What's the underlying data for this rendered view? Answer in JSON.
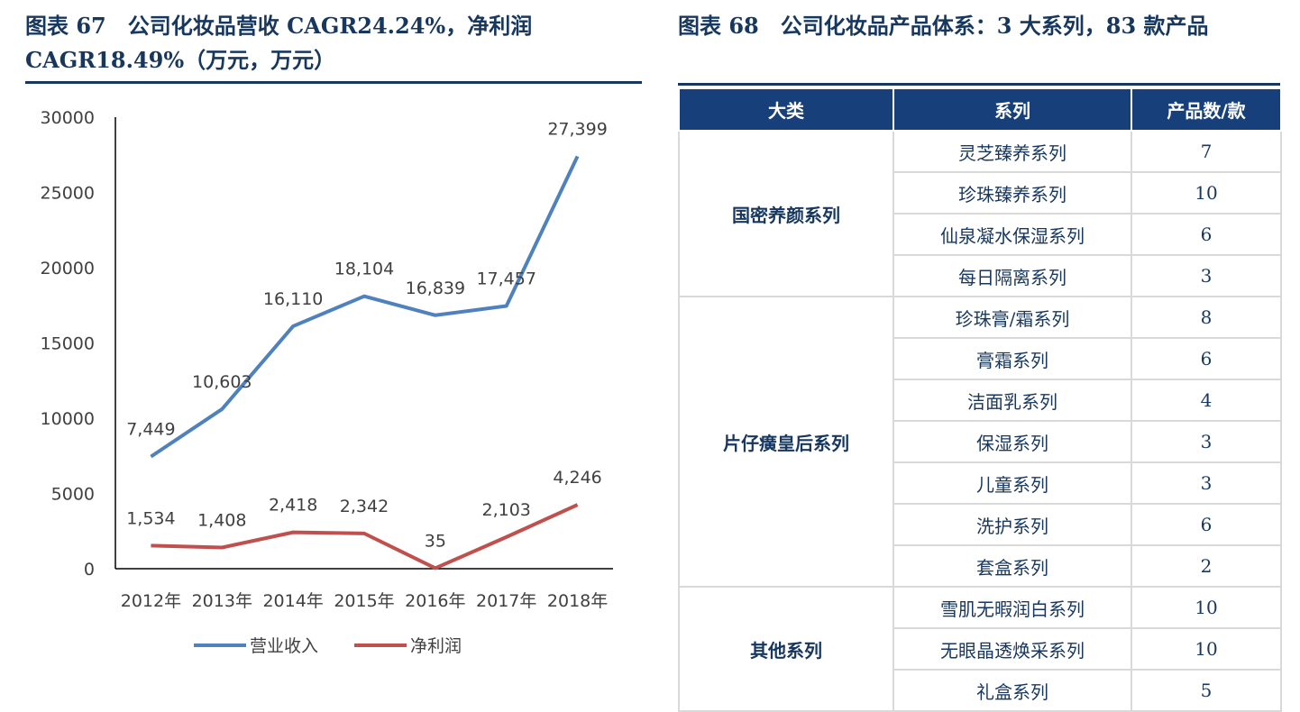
{
  "left": {
    "title": "图表 67　公司化妆品营收 CAGR24.24%，净利润 CAGR18.49%（万元，万元）"
  },
  "right": {
    "title": "图表 68　公司化妆品产品体系：3 大系列，83 款产品",
    "headers": [
      "大类",
      "系列",
      "产品数/款"
    ],
    "groups": [
      {
        "category": "国密养颜系列",
        "rows": [
          [
            "灵芝臻养系列",
            "7"
          ],
          [
            "珍珠臻养系列",
            "10"
          ],
          [
            "仙泉凝水保湿系列",
            "6"
          ],
          [
            "每日隔离系列",
            "3"
          ]
        ]
      },
      {
        "category": "片仔癀皇后系列",
        "rows": [
          [
            "珍珠膏/霜系列",
            "8"
          ],
          [
            "膏霜系列",
            "6"
          ],
          [
            "洁面乳系列",
            "4"
          ],
          [
            "保湿系列",
            "3"
          ],
          [
            "儿童系列",
            "3"
          ],
          [
            "洗护系列",
            "6"
          ],
          [
            "套盒系列",
            "2"
          ]
        ]
      },
      {
        "category": "其他系列",
        "rows": [
          [
            "雪肌无暇润白系列",
            "10"
          ],
          [
            "无眼晶透焕采系列",
            "10"
          ],
          [
            "礼盒系列",
            "5"
          ]
        ]
      }
    ]
  },
  "chart_data": {
    "type": "line",
    "categories": [
      "2012年",
      "2013年",
      "2014年",
      "2015年",
      "2016年",
      "2017年",
      "2018年"
    ],
    "ylim": [
      0,
      30000
    ],
    "yticks": [
      0,
      5000,
      10000,
      15000,
      20000,
      25000,
      30000
    ],
    "legend": "bottom",
    "grid": false,
    "series": [
      {
        "name": "营业收入",
        "color": "#4f81bd",
        "values": [
          7449,
          10603,
          16110,
          18104,
          16839,
          17457,
          27399
        ],
        "labels": [
          "7,449",
          "10,603",
          "16,110",
          "18,104",
          "16,839",
          "17,457",
          "27,399"
        ]
      },
      {
        "name": "净利润",
        "color": "#c0504d",
        "values": [
          1534,
          1408,
          2418,
          2342,
          35,
          2103,
          4246
        ],
        "labels": [
          "1,534",
          "1,408",
          "2,418",
          "2,342",
          "35",
          "2,103",
          "4,246"
        ]
      }
    ]
  }
}
